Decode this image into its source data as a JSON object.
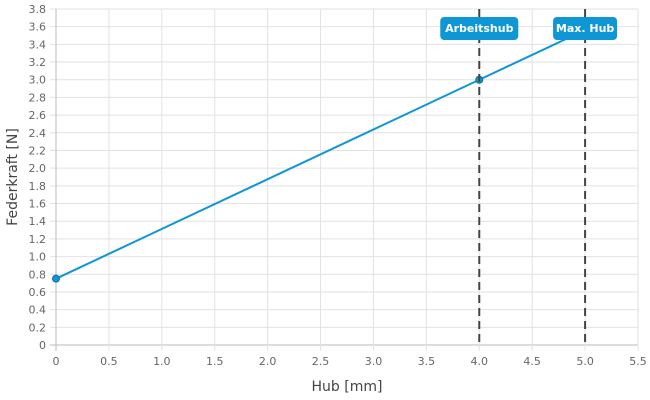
{
  "chart_data": {
    "type": "line",
    "xlabel": "Hub [mm]",
    "ylabel": "Federkraft [N]",
    "xlim": [
      0,
      5.5
    ],
    "ylim": [
      0,
      3.8
    ],
    "xticks": [
      "0",
      "0.5",
      "1.0",
      "1.5",
      "2.0",
      "2.5",
      "3.0",
      "3.5",
      "4.0",
      "4.5",
      "5.0",
      "5.5"
    ],
    "yticks": [
      "0",
      "0.2",
      "0.4",
      "0.6",
      "0.8",
      "1.0",
      "1.2",
      "1.4",
      "1.6",
      "1.8",
      "2.0",
      "2.2",
      "2.4",
      "2.6",
      "2.8",
      "3.0",
      "3.2",
      "3.4",
      "3.6",
      "3.8"
    ],
    "grid": true,
    "series": [
      {
        "x": [
          0,
          4,
          5
        ],
        "y": [
          0.75,
          3.0,
          3.5625
        ],
        "color": "#0f96d4",
        "points": [
          [
            0,
            0.75
          ],
          [
            4,
            3.0
          ]
        ]
      }
    ],
    "markers": [
      {
        "x": 4.0,
        "label": "Arbeitshub"
      },
      {
        "x": 5.0,
        "label": "Max. Hub"
      }
    ],
    "marker_color": "#0f96d4",
    "dash_color": "#444444"
  }
}
